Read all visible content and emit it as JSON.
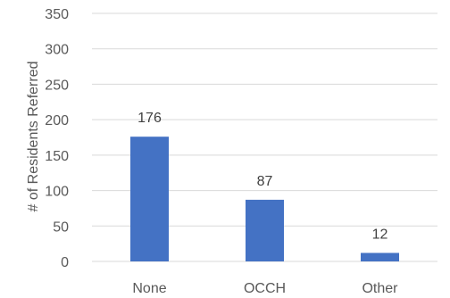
{
  "chart_data": {
    "type": "bar",
    "categories": [
      "None",
      "OCCH",
      "Other"
    ],
    "values": [
      176,
      87,
      12
    ],
    "data_labels": [
      "176",
      "87",
      "12"
    ],
    "ylabel": "# of Residents Referred",
    "xlabel": "",
    "title": "",
    "ylim": [
      0,
      350
    ],
    "yticks": [
      0,
      50,
      100,
      150,
      200,
      250,
      300,
      350
    ],
    "grid": true,
    "legend": "none",
    "bar_color": "#4472c4"
  }
}
